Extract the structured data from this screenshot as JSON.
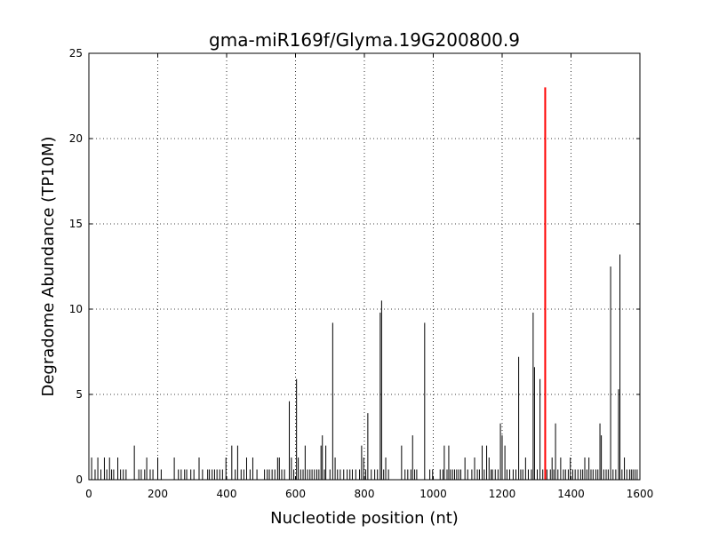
{
  "chart_data": {
    "type": "bar",
    "title": "gma-miR169f/Glyma.19G200800.9",
    "xlabel": "Nucleotide position (nt)",
    "ylabel": "Degradome Abundance (TP10M)",
    "xlim": [
      0,
      1600
    ],
    "ylim": [
      0,
      25
    ],
    "xticks": [
      0,
      200,
      400,
      600,
      800,
      1000,
      1200,
      1400,
      1600
    ],
    "yticks": [
      0,
      5,
      10,
      15,
      20,
      25
    ],
    "grid": true,
    "series": [
      {
        "color": "#000000",
        "points": [
          [
            8,
            1.3
          ],
          [
            18,
            0.6
          ],
          [
            26,
            1.3
          ],
          [
            35,
            0.6
          ],
          [
            45,
            1.3
          ],
          [
            52,
            0.6
          ],
          [
            60,
            1.3
          ],
          [
            66,
            0.6
          ],
          [
            72,
            0.6
          ],
          [
            84,
            1.3
          ],
          [
            92,
            0.6
          ],
          [
            100,
            0.6
          ],
          [
            108,
            0.6
          ],
          [
            132,
            2.0
          ],
          [
            145,
            0.6
          ],
          [
            152,
            0.6
          ],
          [
            162,
            0.6
          ],
          [
            168,
            1.3
          ],
          [
            178,
            0.6
          ],
          [
            186,
            0.6
          ],
          [
            200,
            1.3
          ],
          [
            210,
            0.6
          ],
          [
            248,
            1.3
          ],
          [
            260,
            0.6
          ],
          [
            268,
            0.6
          ],
          [
            278,
            0.6
          ],
          [
            284,
            0.6
          ],
          [
            296,
            0.6
          ],
          [
            305,
            0.6
          ],
          [
            320,
            1.3
          ],
          [
            330,
            0.6
          ],
          [
            345,
            0.6
          ],
          [
            350,
            0.6
          ],
          [
            358,
            0.6
          ],
          [
            365,
            0.6
          ],
          [
            372,
            0.6
          ],
          [
            380,
            0.6
          ],
          [
            388,
            0.6
          ],
          [
            398,
            1.3
          ],
          [
            415,
            2.0
          ],
          [
            425,
            0.6
          ],
          [
            432,
            2.0
          ],
          [
            442,
            0.6
          ],
          [
            450,
            0.6
          ],
          [
            458,
            1.3
          ],
          [
            468,
            0.6
          ],
          [
            476,
            1.3
          ],
          [
            488,
            0.6
          ],
          [
            510,
            0.6
          ],
          [
            518,
            0.6
          ],
          [
            524,
            0.6
          ],
          [
            532,
            0.6
          ],
          [
            540,
            0.6
          ],
          [
            548,
            1.3
          ],
          [
            553,
            1.3
          ],
          [
            560,
            0.6
          ],
          [
            568,
            0.6
          ],
          [
            582,
            4.6
          ],
          [
            588,
            1.3
          ],
          [
            595,
            0.6
          ],
          [
            603,
            5.9
          ],
          [
            608,
            1.3
          ],
          [
            615,
            0.6
          ],
          [
            622,
            0.6
          ],
          [
            628,
            2.0
          ],
          [
            635,
            0.6
          ],
          [
            642,
            0.6
          ],
          [
            648,
            0.6
          ],
          [
            655,
            0.6
          ],
          [
            662,
            0.6
          ],
          [
            668,
            0.6
          ],
          [
            674,
            2.0
          ],
          [
            678,
            2.6
          ],
          [
            684,
            0.6
          ],
          [
            688,
            2.0
          ],
          [
            700,
            0.6
          ],
          [
            708,
            9.2
          ],
          [
            715,
            1.3
          ],
          [
            722,
            0.6
          ],
          [
            730,
            0.6
          ],
          [
            740,
            0.6
          ],
          [
            750,
            0.6
          ],
          [
            758,
            0.6
          ],
          [
            765,
            0.6
          ],
          [
            775,
            0.6
          ],
          [
            786,
            0.6
          ],
          [
            792,
            2.0
          ],
          [
            798,
            1.3
          ],
          [
            804,
            0.6
          ],
          [
            810,
            3.9
          ],
          [
            820,
            0.6
          ],
          [
            830,
            0.6
          ],
          [
            838,
            0.6
          ],
          [
            846,
            9.8
          ],
          [
            850,
            10.5
          ],
          [
            856,
            0.6
          ],
          [
            862,
            1.3
          ],
          [
            870,
            0.6
          ],
          [
            908,
            2.0
          ],
          [
            918,
            0.6
          ],
          [
            926,
            0.6
          ],
          [
            935,
            0.6
          ],
          [
            940,
            2.6
          ],
          [
            946,
            0.6
          ],
          [
            952,
            0.6
          ],
          [
            975,
            9.2
          ],
          [
            990,
            0.6
          ],
          [
            998,
            0.6
          ],
          [
            1020,
            0.6
          ],
          [
            1028,
            0.6
          ],
          [
            1032,
            2.0
          ],
          [
            1040,
            0.6
          ],
          [
            1045,
            2.0
          ],
          [
            1050,
            0.6
          ],
          [
            1056,
            0.6
          ],
          [
            1062,
            0.6
          ],
          [
            1068,
            0.6
          ],
          [
            1074,
            0.6
          ],
          [
            1080,
            0.6
          ],
          [
            1092,
            1.3
          ],
          [
            1100,
            0.6
          ],
          [
            1112,
            0.6
          ],
          [
            1120,
            1.3
          ],
          [
            1128,
            0.6
          ],
          [
            1134,
            0.6
          ],
          [
            1142,
            2.0
          ],
          [
            1148,
            0.6
          ],
          [
            1155,
            2.0
          ],
          [
            1162,
            1.3
          ],
          [
            1168,
            0.6
          ],
          [
            1172,
            0.6
          ],
          [
            1180,
            0.6
          ],
          [
            1188,
            0.6
          ],
          [
            1195,
            3.3
          ],
          [
            1200,
            2.6
          ],
          [
            1208,
            2.0
          ],
          [
            1214,
            0.6
          ],
          [
            1222,
            0.6
          ],
          [
            1232,
            0.6
          ],
          [
            1240,
            0.6
          ],
          [
            1248,
            7.2
          ],
          [
            1254,
            0.6
          ],
          [
            1260,
            0.6
          ],
          [
            1268,
            1.3
          ],
          [
            1276,
            0.6
          ],
          [
            1285,
            0.6
          ],
          [
            1290,
            9.8
          ],
          [
            1294,
            6.6
          ],
          [
            1302,
            0.6
          ],
          [
            1310,
            5.9
          ],
          [
            1318,
            0.6
          ],
          [
            1330,
            0.6
          ],
          [
            1340,
            0.6
          ],
          [
            1345,
            1.3
          ],
          [
            1350,
            0.6
          ],
          [
            1355,
            3.3
          ],
          [
            1362,
            0.6
          ],
          [
            1370,
            1.3
          ],
          [
            1378,
            0.6
          ],
          [
            1384,
            0.6
          ],
          [
            1392,
            0.6
          ],
          [
            1398,
            1.3
          ],
          [
            1405,
            0.6
          ],
          [
            1412,
            0.6
          ],
          [
            1420,
            0.6
          ],
          [
            1428,
            0.6
          ],
          [
            1434,
            0.6
          ],
          [
            1440,
            1.3
          ],
          [
            1446,
            0.6
          ],
          [
            1452,
            1.3
          ],
          [
            1458,
            0.6
          ],
          [
            1464,
            0.6
          ],
          [
            1472,
            0.6
          ],
          [
            1478,
            0.6
          ],
          [
            1484,
            3.3
          ],
          [
            1488,
            2.6
          ],
          [
            1495,
            0.6
          ],
          [
            1502,
            0.6
          ],
          [
            1508,
            0.6
          ],
          [
            1515,
            12.5
          ],
          [
            1522,
            0.6
          ],
          [
            1530,
            0.6
          ],
          [
            1538,
            5.3
          ],
          [
            1542,
            13.2
          ],
          [
            1548,
            0.6
          ],
          [
            1555,
            1.3
          ],
          [
            1562,
            0.6
          ],
          [
            1570,
            0.6
          ],
          [
            1575,
            0.6
          ],
          [
            1580,
            0.6
          ],
          [
            1586,
            0.6
          ],
          [
            1592,
            0.6
          ]
        ]
      },
      {
        "color": "#ff0000",
        "points": [
          [
            1325,
            23.0
          ]
        ]
      }
    ]
  }
}
